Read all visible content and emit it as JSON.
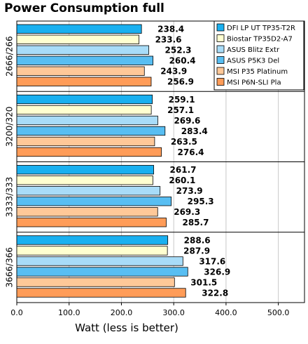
{
  "chart_data": {
    "type": "bar",
    "orientation": "horizontal",
    "title": "Power Consumption full",
    "xlabel": "Watt (less is better)",
    "ylabel": "",
    "xlim": [
      0,
      550
    ],
    "x_ticks": [
      "0.0",
      "100.0",
      "200.0",
      "300.0",
      "400.0",
      "500.0"
    ],
    "grid": "vertical",
    "legend_position": "top-right",
    "categories": [
      "2666/266",
      "3200/320",
      "3333/333",
      "3666/366"
    ],
    "series": [
      {
        "name": "DFI LP UT TP35-T2R",
        "color": "#1ab0f0",
        "values": [
          238.4,
          259.1,
          261.7,
          288.6
        ],
        "labels": [
          "238.4",
          "259.1",
          "261.7",
          "288.6"
        ]
      },
      {
        "name": "Biostar TP35D2-A7",
        "color": "#ffffd0",
        "values": [
          233.6,
          257.1,
          260.1,
          287.9
        ],
        "labels": [
          "233.6",
          "257.1",
          "260.1",
          "287.9"
        ]
      },
      {
        "name": "ASUS Blitz Extr",
        "color": "#a8dcf8",
        "values": [
          252.3,
          269.6,
          273.9,
          317.6
        ],
        "labels": [
          "252.3",
          "269.6",
          "273.9",
          "317.6"
        ]
      },
      {
        "name": "ASUS P5K3 Del",
        "color": "#58bef2",
        "values": [
          260.4,
          283.4,
          295.3,
          326.9
        ],
        "labels": [
          "260.4",
          "283.4",
          "295.3",
          "326.9"
        ]
      },
      {
        "name": "MSI P35 Platinum",
        "color": "#ffc898",
        "values": [
          243.9,
          263.5,
          269.3,
          301.5
        ],
        "labels": [
          "243.9",
          "263.5",
          "269.3",
          "301.5"
        ]
      },
      {
        "name": "MSI P6N-SLI Pla",
        "color": "#ff9c58",
        "values": [
          256.9,
          276.4,
          285.7,
          322.8
        ],
        "labels": [
          "256.9",
          "276.4",
          "285.7",
          "322.8"
        ]
      }
    ]
  }
}
